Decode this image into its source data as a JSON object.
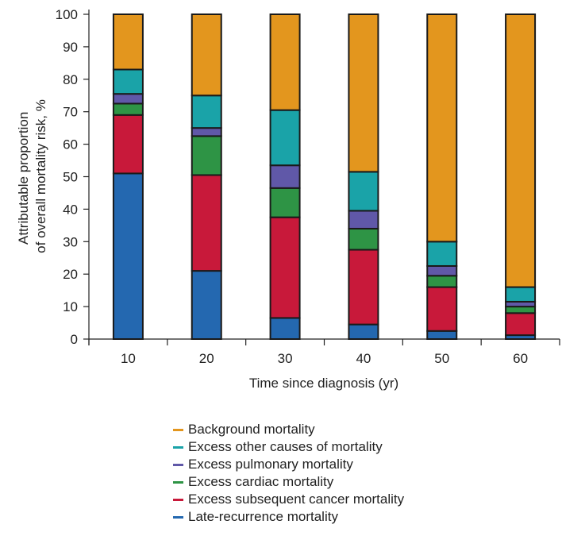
{
  "chart_data": {
    "type": "bar",
    "stacked": true,
    "categories": [
      "10",
      "20",
      "30",
      "40",
      "50",
      "60"
    ],
    "xlabel": "Time since diagnosis (yr)",
    "ylabel_lines": [
      "Attributable proportion",
      "of overall mortality risk, %"
    ],
    "ylim": [
      0,
      100
    ],
    "yticks": [
      0,
      10,
      20,
      30,
      40,
      50,
      60,
      70,
      80,
      90,
      100
    ],
    "grid": false,
    "legend_position": "bottom",
    "series": [
      {
        "name": "Late-recurrence mortality",
        "color": "#2468b0",
        "values": [
          51,
          21,
          6.5,
          4.5,
          2.5,
          1.2
        ]
      },
      {
        "name": "Excess subsequent cancer mortality",
        "color": "#c8193a",
        "values": [
          18,
          29.5,
          31,
          23,
          13.5,
          6.8
        ]
      },
      {
        "name": "Excess cardiac mortality",
        "color": "#2e9445",
        "values": [
          3.5,
          12,
          9,
          6.5,
          3.5,
          2
        ]
      },
      {
        "name": "Excess pulmonary mortality",
        "color": "#6058a8",
        "values": [
          3,
          2.5,
          7,
          5.5,
          3,
          1.5
        ]
      },
      {
        "name": "Excess other causes of mortality",
        "color": "#1aa3a8",
        "values": [
          7.5,
          10,
          17,
          12,
          7.5,
          4.5
        ]
      },
      {
        "name": "Background mortality",
        "color": "#e3961e",
        "values": [
          17,
          25,
          29.5,
          48.5,
          70,
          84
        ]
      }
    ]
  }
}
